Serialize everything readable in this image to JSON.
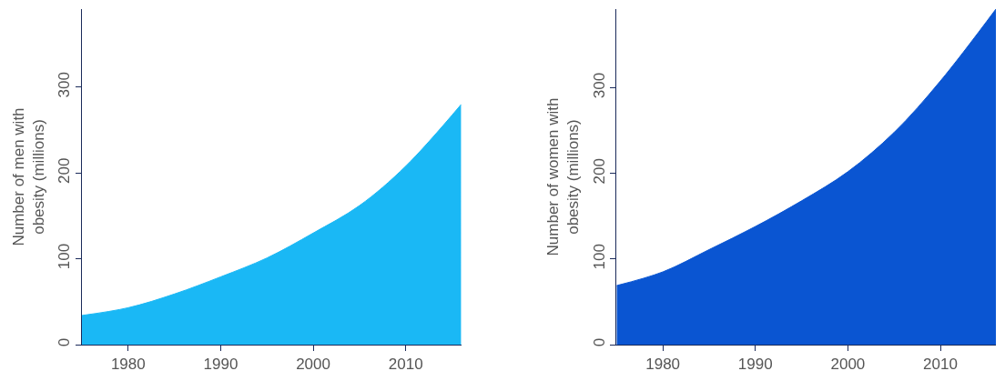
{
  "chart_data": [
    {
      "type": "area",
      "ylabel": "Number of men with\nobesity (millions)",
      "x": [
        1975,
        1980,
        1985,
        1990,
        1995,
        2000,
        2005,
        2010,
        2016
      ],
      "series": [
        {
          "color": "#1ab8f5",
          "values": [
            34,
            43,
            59,
            79,
            101,
            130,
            162,
            208,
            280
          ]
        }
      ],
      "xlim": [
        1975,
        2016
      ],
      "xticks": [
        1980,
        1990,
        2000,
        2010
      ],
      "ylim": [
        0,
        391
      ],
      "yticks": [
        0,
        100,
        200,
        300
      ]
    },
    {
      "type": "area",
      "ylabel": "Number of women with\nobesity (millions)",
      "x": [
        1975,
        1980,
        1985,
        1990,
        1995,
        2000,
        2005,
        2010,
        2016
      ],
      "series": [
        {
          "color": "#0a55d2",
          "values": [
            69,
            85,
            111,
            138,
            168,
            202,
            248,
            308,
            392
          ]
        }
      ],
      "xlim": [
        1975,
        2016
      ],
      "xticks": [
        1980,
        1990,
        2000,
        2010
      ],
      "ylim": [
        0,
        392
      ],
      "yticks": [
        0,
        100,
        200,
        300
      ]
    }
  ]
}
